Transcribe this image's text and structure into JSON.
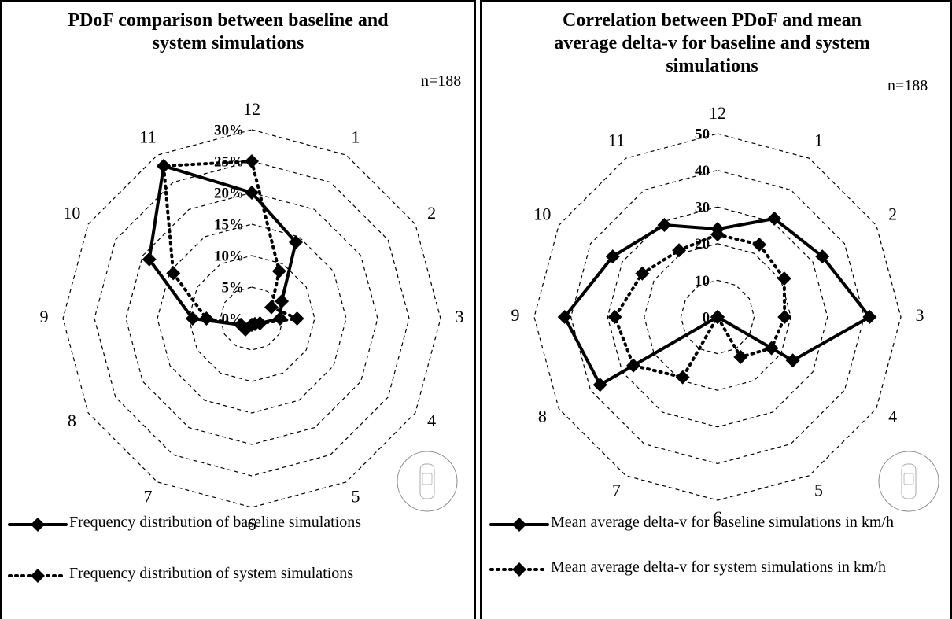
{
  "chart_data": [
    {
      "type": "radar",
      "title": "PDoF comparison between baseline and system simulations",
      "annotation": "n=188",
      "categories": [
        "12",
        "1",
        "2",
        "3",
        "4",
        "5",
        "6",
        "7",
        "8",
        "9",
        "10",
        "11"
      ],
      "ylim": [
        0,
        30
      ],
      "yticks": [
        {
          "value": 0,
          "label": "0%"
        },
        {
          "value": 5,
          "label": "5%"
        },
        {
          "value": 10,
          "label": "10%"
        },
        {
          "value": 15,
          "label": "15%"
        },
        {
          "value": 20,
          "label": "20%"
        },
        {
          "value": 25,
          "label": "25%"
        },
        {
          "value": 30,
          "label": "30%"
        }
      ],
      "series": [
        {
          "name": "Frequency distribution of baseline simulations",
          "color": "#000000",
          "style": "solid",
          "values": [
            20,
            14,
            5.5,
            4.5,
            1.5,
            1,
            1,
            2,
            2,
            9.4,
            18.8,
            28
          ]
        },
        {
          "name": "Frequency distribution of system simulations",
          "color": "#000000",
          "style": "dotted",
          "values": [
            25,
            8.7,
            3.6,
            7.2,
            1.5,
            1,
            1,
            2,
            2,
            7.2,
            14.4,
            28
          ]
        }
      ]
    },
    {
      "type": "radar",
      "title": "Correlation between PDoF and mean average delta-v for baseline and system simulations",
      "annotation": "n=188",
      "categories": [
        "12",
        "1",
        "2",
        "3",
        "4",
        "5",
        "6",
        "7",
        "8",
        "9",
        "10",
        "11"
      ],
      "ylim": [
        0,
        50
      ],
      "yticks": [
        0,
        10,
        20,
        30,
        40,
        50
      ],
      "series": [
        {
          "name": "Mean average delta-v for baseline simulations in km/h",
          "color": "#000000",
          "style": "solid",
          "values": [
            24,
            31,
            33,
            41.5,
            23.7,
            0,
            0,
            0,
            37,
            41.7,
            33,
            29
          ]
        },
        {
          "name": "Mean average delta-v for system simulations in km/h",
          "color": "#000000",
          "style": "dotted",
          "values": [
            22.5,
            22.8,
            21,
            18.3,
            17,
            12.6,
            0,
            19,
            26.5,
            28,
            23.7,
            21
          ]
        }
      ]
    }
  ]
}
